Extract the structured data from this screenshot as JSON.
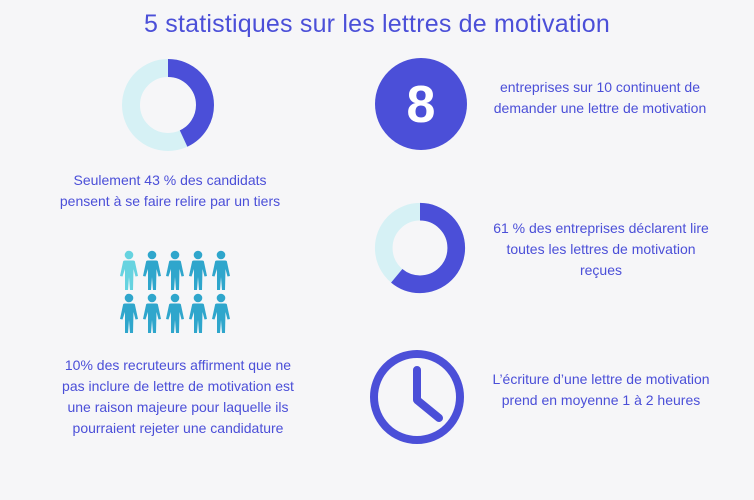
{
  "title": "5 statistiques sur les lettres de motivation",
  "colors": {
    "accent": "#4b4fd8",
    "ring_track": "#d6f1f5",
    "people_light": "#66d3e0",
    "people_dark": "#2fa6cc"
  },
  "stats": [
    {
      "id": "candidats-relire",
      "icon": "donut-chart-icon",
      "percent": 43,
      "text": "Seulement 43 % des candidats pensent à se faire relire par un tiers"
    },
    {
      "id": "entreprises-demande",
      "icon": "number-circle-icon",
      "number": "8",
      "text": "entreprises sur 10 continuent de demander une lettre de motivation"
    },
    {
      "id": "entreprises-lire",
      "icon": "donut-chart-icon",
      "percent": 61,
      "text": "61 % des entreprises déclarent lire toutes les lettres de motivation reçues"
    },
    {
      "id": "recruteurs-rejet",
      "icon": "people-grid-icon",
      "highlighted_fraction": 0.1,
      "text": "10% des recruteurs affirment que ne pas inclure de lettre de motivation est une raison majeure pour laquelle ils pourraient rejeter une candidature"
    },
    {
      "id": "duree-ecriture",
      "icon": "clock-icon",
      "text": "L’écriture d’une lettre de motivation prend en moyenne 1 à 2 heures"
    }
  ]
}
